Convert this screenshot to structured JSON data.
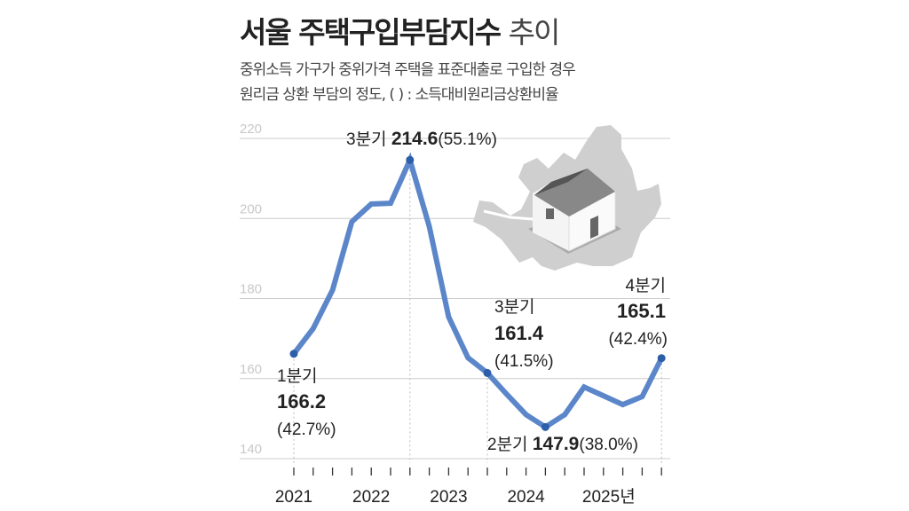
{
  "header": {
    "title_bold": "서울 주택구입부담지수",
    "title_light": "추이",
    "subtitle_line1": "중위소득 가구가 중위가격 주택을 표준대출로 구입한 경우",
    "subtitle_line2": "원리금 상환 부담의 정도,  ( ) : 소득대비원리금상환비율"
  },
  "colors": {
    "line": "#5b86c9",
    "point": "#2d5ea8",
    "grid": "#cccccc",
    "map": "#cfcfcf"
  },
  "chart_data": {
    "type": "line",
    "title": "서울 주택구입부담지수 추이",
    "xlabel": "",
    "ylabel": "",
    "ylim": [
      140,
      220
    ],
    "yticks": [
      140,
      160,
      180,
      200,
      220
    ],
    "year_labels": [
      "2021",
      "2022",
      "2023",
      "2024",
      "2025년"
    ],
    "x": [
      "2021Q1",
      "2021Q2",
      "2021Q3",
      "2021Q4",
      "2022Q1",
      "2022Q2",
      "2022Q3",
      "2022Q4",
      "2023Q1",
      "2023Q2",
      "2023Q3",
      "2023Q4",
      "2024Q1",
      "2024Q2",
      "2024Q3",
      "2024Q4",
      "2025Q1",
      "2025Q2",
      "2025Q3",
      "2025Q4"
    ],
    "values": [
      166.2,
      172.5,
      182.1,
      199.2,
      203.6,
      203.8,
      214.6,
      198.0,
      175.4,
      165.2,
      161.4,
      156.1,
      151.0,
      147.9,
      151.0,
      157.9,
      155.7,
      153.5,
      155.5,
      165.1
    ],
    "annotations": [
      {
        "index": 0,
        "quarter": "1분기",
        "value": "166.2",
        "ratio": "(42.7%)"
      },
      {
        "index": 6,
        "quarter": "3분기",
        "value": "214.6",
        "ratio": "(55.1%)"
      },
      {
        "index": 10,
        "quarter": "3분기",
        "value": "161.4",
        "ratio": "(41.5%)"
      },
      {
        "index": 13,
        "quarter": "2분기",
        "value": "147.9",
        "ratio": "(38.0%)"
      },
      {
        "index": 19,
        "quarter": "4분기",
        "value": "165.1",
        "ratio": "(42.4%)"
      }
    ]
  }
}
